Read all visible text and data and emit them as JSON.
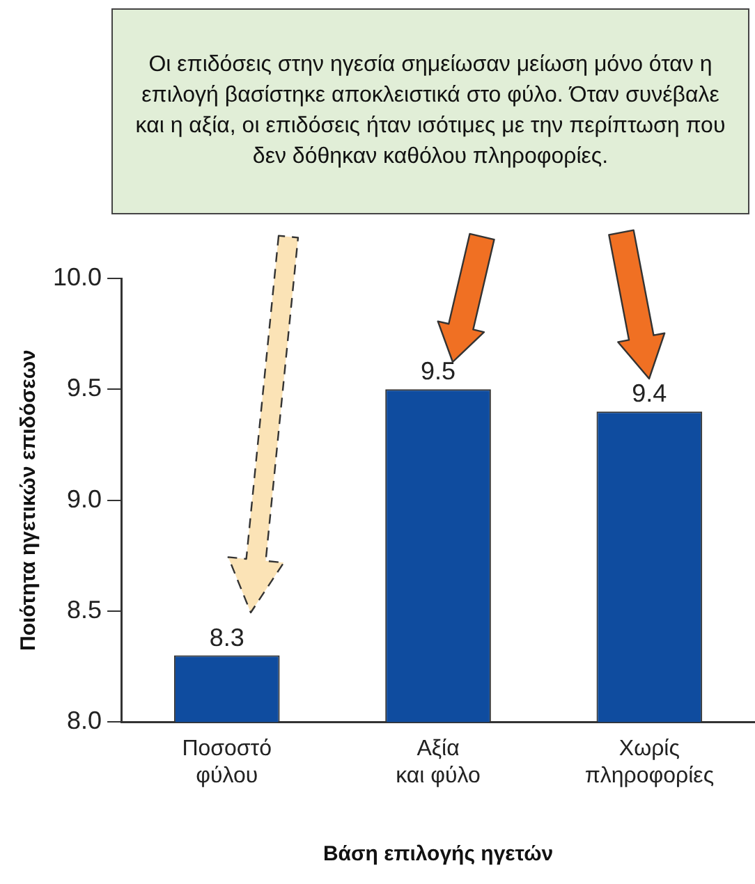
{
  "chart_data": {
    "type": "bar",
    "annotations": [
      "Οι επιδόσεις στην ηγεσία σημείωσαν μείωση μόνο όταν η επιλογή βασίστηκε αποκλειστικά στο φύλο. Όταν συνέβαλε και η αξία, οι επιδόσεις ήταν ισότιμες με την περίπτωση που δεν δόθηκαν καθόλου πληροφορίες."
    ],
    "xlabel": "Βάση επιλογής ηγετών",
    "ylabel": "Ποιότητα ηγετικών επιδόσεων",
    "categories": [
      "Ποσοστό\nφύλου",
      "Αξία\nκαι φύλο",
      "Χωρίς\nπληροφορίες"
    ],
    "values": [
      8.3,
      9.5,
      9.4
    ],
    "color": "#0f4c9f",
    "ylim": [
      8,
      10
    ],
    "yticks": [
      {
        "value": 8,
        "label": "8.0"
      },
      {
        "value": 8.5,
        "label": "8.5"
      },
      {
        "value": 9,
        "label": "9.0"
      },
      {
        "value": 9.5,
        "label": "9.5"
      },
      {
        "value": 10,
        "label": "10.0"
      }
    ],
    "grid": false,
    "legend": false,
    "data_labels": true
  }
}
